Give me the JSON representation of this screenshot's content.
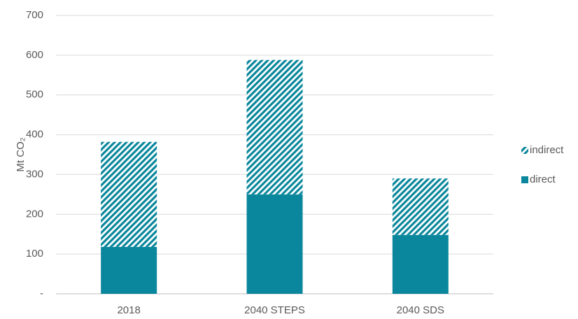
{
  "chart_data": {
    "type": "stacked_bar",
    "y_label": "Mt CO₂",
    "categories": [
      "2018",
      "2040 STEPS",
      "2040 SDS"
    ],
    "series": [
      {
        "name": "direct",
        "color": "#0a879c",
        "pattern": "solid",
        "values": [
          118,
          250,
          148
        ]
      },
      {
        "name": "indirect",
        "color": "#0a879c",
        "pattern": "hatched",
        "values": [
          264,
          338,
          142
        ]
      }
    ],
    "ylim": [
      0,
      700
    ],
    "yticks": [
      {
        "value": 0,
        "label": "-"
      },
      100,
      200,
      300,
      400,
      500,
      600,
      700
    ],
    "grid": true,
    "legend": "right"
  }
}
